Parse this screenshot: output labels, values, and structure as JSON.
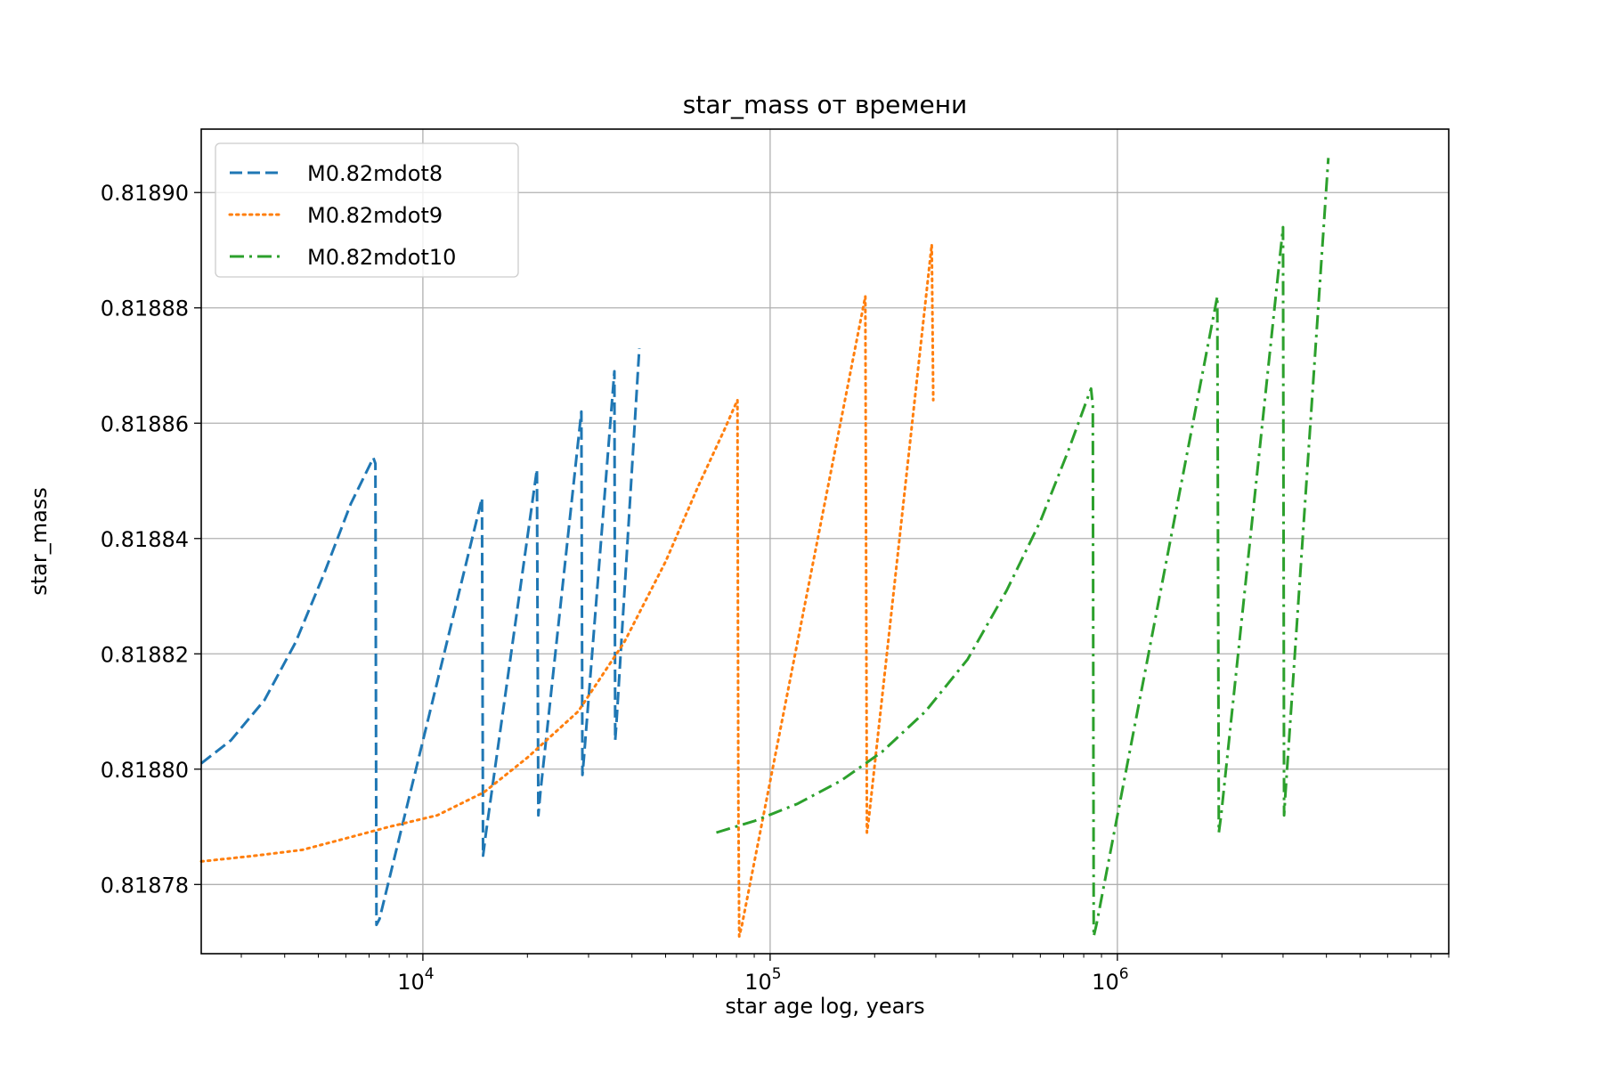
{
  "chart_data": {
    "type": "line",
    "title": "star_mass от времени",
    "xlabel": "star age log, years",
    "ylabel": "star_mass",
    "xscale": "log",
    "xlim": [
      2300,
      9000000
    ],
    "ylim": [
      0.818768,
      0.818911
    ],
    "grid": true,
    "legend_position": "top-left",
    "x_ticks": [
      {
        "value": 10000,
        "base": "10",
        "exp": "4"
      },
      {
        "value": 100000,
        "base": "10",
        "exp": "5"
      },
      {
        "value": 1000000,
        "base": "10",
        "exp": "6"
      }
    ],
    "y_ticks": [
      {
        "value": 0.81878,
        "label": "0.81878"
      },
      {
        "value": 0.8188,
        "label": "0.81880"
      },
      {
        "value": 0.81882,
        "label": "0.81882"
      },
      {
        "value": 0.81884,
        "label": "0.81884"
      },
      {
        "value": 0.81886,
        "label": "0.81886"
      },
      {
        "value": 0.81888,
        "label": "0.81888"
      },
      {
        "value": 0.8189,
        "label": "0.81890"
      }
    ],
    "series": [
      {
        "name": "M0.82mdot8",
        "color": "#1f77b4",
        "style": "dashed",
        "points": [
          [
            2300,
            0.818801
          ],
          [
            2800,
            0.818805
          ],
          [
            3500,
            0.818812
          ],
          [
            4300,
            0.818822
          ],
          [
            5200,
            0.818834
          ],
          [
            6200,
            0.818846
          ],
          [
            7200,
            0.818854
          ],
          [
            7300,
            0.818853
          ],
          [
            7350,
            0.818773
          ],
          [
            7500,
            0.818774
          ],
          [
            14800,
            0.818847
          ],
          [
            14900,
            0.818785
          ],
          [
            15200,
            0.818789
          ],
          [
            21300,
            0.818852
          ],
          [
            21500,
            0.818792
          ],
          [
            21800,
            0.818796
          ],
          [
            28600,
            0.818862
          ],
          [
            28800,
            0.818799
          ],
          [
            29100,
            0.818802
          ],
          [
            35600,
            0.818869
          ],
          [
            35800,
            0.818805
          ],
          [
            36100,
            0.818808
          ],
          [
            42000,
            0.818873
          ]
        ]
      },
      {
        "name": "M0.82mdot9",
        "color": "#ff7f0e",
        "style": "dotted",
        "points": [
          [
            2300,
            0.818784
          ],
          [
            3300,
            0.818785
          ],
          [
            4500,
            0.818786
          ],
          [
            6000,
            0.818788
          ],
          [
            8000,
            0.81879
          ],
          [
            11000,
            0.818792
          ],
          [
            15000,
            0.818796
          ],
          [
            20000,
            0.818802
          ],
          [
            28000,
            0.81881
          ],
          [
            38000,
            0.818822
          ],
          [
            50000,
            0.818836
          ],
          [
            62000,
            0.818849
          ],
          [
            74000,
            0.818859
          ],
          [
            80500,
            0.818864
          ],
          [
            81000,
            0.818795
          ],
          [
            81500,
            0.818771
          ],
          [
            83000,
            0.818773
          ],
          [
            188000,
            0.818882
          ],
          [
            190000,
            0.818789
          ],
          [
            192000,
            0.818791
          ],
          [
            292000,
            0.818891
          ],
          [
            295000,
            0.818864
          ]
        ]
      },
      {
        "name": "M0.82mdot10",
        "color": "#2ca02c",
        "style": "dashdot",
        "points": [
          [
            70000,
            0.818789
          ],
          [
            90000,
            0.818791
          ],
          [
            120000,
            0.818794
          ],
          [
            160000,
            0.818798
          ],
          [
            210000,
            0.818803
          ],
          [
            280000,
            0.81881
          ],
          [
            370000,
            0.818819
          ],
          [
            480000,
            0.818831
          ],
          [
            600000,
            0.818843
          ],
          [
            720000,
            0.818855
          ],
          [
            840000,
            0.818866
          ],
          [
            850000,
            0.818863
          ],
          [
            855000,
            0.818771
          ],
          [
            870000,
            0.818773
          ],
          [
            1940000,
            0.818882
          ],
          [
            1960000,
            0.818789
          ],
          [
            1990000,
            0.818792
          ],
          [
            3000000,
            0.818894
          ],
          [
            3020000,
            0.818792
          ],
          [
            3050000,
            0.818796
          ],
          [
            4050000,
            0.818906
          ]
        ]
      }
    ]
  }
}
